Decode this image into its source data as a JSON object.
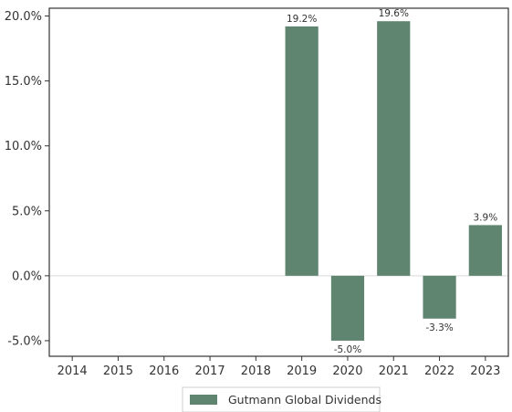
{
  "chart_data": {
    "type": "bar",
    "title": "",
    "xlabel": "",
    "ylabel": "",
    "categories": [
      "2014",
      "2015",
      "2016",
      "2017",
      "2018",
      "2019",
      "2020",
      "2021",
      "2022",
      "2023"
    ],
    "series": [
      {
        "name": "Gutmann Global Dividends",
        "values": [
          null,
          null,
          null,
          null,
          null,
          19.2,
          -5.0,
          19.6,
          -3.3,
          3.9
        ],
        "labels": [
          "",
          "",
          "",
          "",
          "",
          "19.2%",
          "-5.0%",
          "19.6%",
          "-3.3%",
          "3.9%"
        ],
        "color": "#5f8570"
      }
    ],
    "ylim": [
      -6.2,
      20.6
    ],
    "yticks": [
      -5.0,
      0.0,
      5.0,
      10.0,
      15.0,
      20.0
    ],
    "ytick_labels": [
      "-5.0%",
      "0.0%",
      "5.0%",
      "10.0%",
      "15.0%",
      "20.0%"
    ],
    "grid": false,
    "legend": "bottom-center",
    "zero_line_color": "#d9d9d9"
  }
}
